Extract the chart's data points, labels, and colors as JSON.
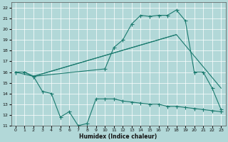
{
  "xlabel": "Humidex (Indice chaleur)",
  "bg_color": "#b2d8d8",
  "grid_color": "#ffffff",
  "line_color": "#1a7a6e",
  "xlim": [
    -0.5,
    23.5
  ],
  "ylim": [
    11,
    22.5
  ],
  "xticks": [
    0,
    1,
    2,
    3,
    4,
    5,
    6,
    7,
    8,
    9,
    10,
    11,
    12,
    13,
    14,
    15,
    16,
    17,
    18,
    19,
    20,
    21,
    22,
    23
  ],
  "yticks": [
    11,
    12,
    13,
    14,
    15,
    16,
    17,
    18,
    19,
    20,
    21,
    22
  ],
  "line1_x": [
    0,
    1,
    2,
    10,
    11,
    12,
    13,
    14,
    15,
    16,
    17,
    18,
    19,
    20,
    21,
    22,
    23
  ],
  "line1_y": [
    16,
    16,
    15.6,
    16.3,
    18.3,
    19.0,
    20.5,
    21.3,
    21.2,
    21.3,
    21.3,
    21.8,
    20.8,
    16.0,
    16.0,
    14.5,
    12.5
  ],
  "line2_x": [
    0,
    2,
    18,
    23
  ],
  "line2_y": [
    16,
    15.6,
    19.5,
    14.5
  ],
  "line3_x": [
    0,
    1,
    2,
    3,
    4,
    5,
    6,
    7,
    8,
    9,
    10,
    11,
    12,
    13,
    14,
    15,
    16,
    17,
    18,
    19,
    20,
    21,
    22,
    23
  ],
  "line3_y": [
    16,
    16,
    15.6,
    14.2,
    14.0,
    11.8,
    12.3,
    11.0,
    11.2,
    13.5,
    13.5,
    13.5,
    13.3,
    13.2,
    13.1,
    13.0,
    13.0,
    12.8,
    12.8,
    12.7,
    12.6,
    12.5,
    12.4,
    12.3
  ],
  "line4_x": [
    2,
    18
  ],
  "line4_y": [
    15.6,
    19.5
  ]
}
